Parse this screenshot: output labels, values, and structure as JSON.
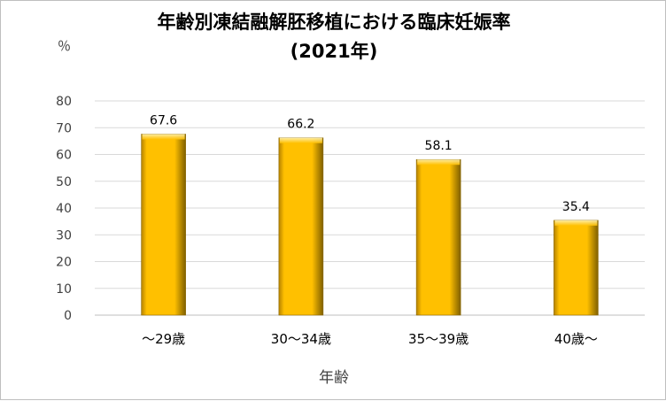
{
  "chart_data": {
    "type": "bar",
    "title": "年齢別凍結融解胚移植における臨床妊娠率",
    "subtitle": "(2021年)",
    "ylabel": "％",
    "xlabel": "年齢",
    "categories": [
      "～29歳",
      "30～34歳",
      "35～39歳",
      "40歳～"
    ],
    "values": [
      67.6,
      66.2,
      58.1,
      35.4
    ],
    "ylim": [
      0,
      80
    ],
    "yticks": [
      0,
      10,
      20,
      30,
      40,
      50,
      60,
      70,
      80
    ],
    "grid": true,
    "legend": "none",
    "bar_color": "#ffc000"
  }
}
